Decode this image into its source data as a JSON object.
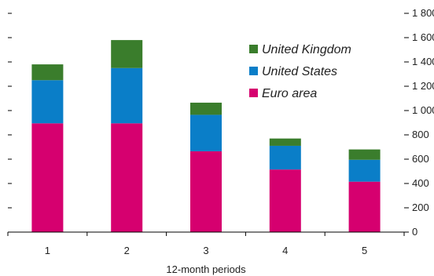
{
  "chart_data": {
    "type": "bar",
    "stacked": true,
    "categories": [
      "1",
      "2",
      "3",
      "4",
      "5"
    ],
    "series": [
      {
        "name": "Euro area",
        "color": "#d6006f",
        "values": [
          895,
          895,
          665,
          515,
          415
        ]
      },
      {
        "name": "United States",
        "color": "#0a7ec8",
        "values": [
          355,
          455,
          300,
          195,
          180
        ]
      },
      {
        "name": "United Kingdom",
        "color": "#3a7d2c",
        "values": [
          130,
          230,
          100,
          60,
          85
        ]
      }
    ],
    "title": "",
    "xlabel": "12-month periods",
    "ylabel": "",
    "ylim": [
      0,
      1800
    ],
    "yticks": [
      "0",
      "200",
      "400",
      "600",
      "800",
      "1 000",
      "1 200",
      "1 400",
      "1 600",
      "1 800"
    ],
    "y_axis_side": "right",
    "legend_order": [
      "United Kingdom",
      "United States",
      "Euro area"
    ],
    "legend_position": "top-right",
    "grid": false
  }
}
